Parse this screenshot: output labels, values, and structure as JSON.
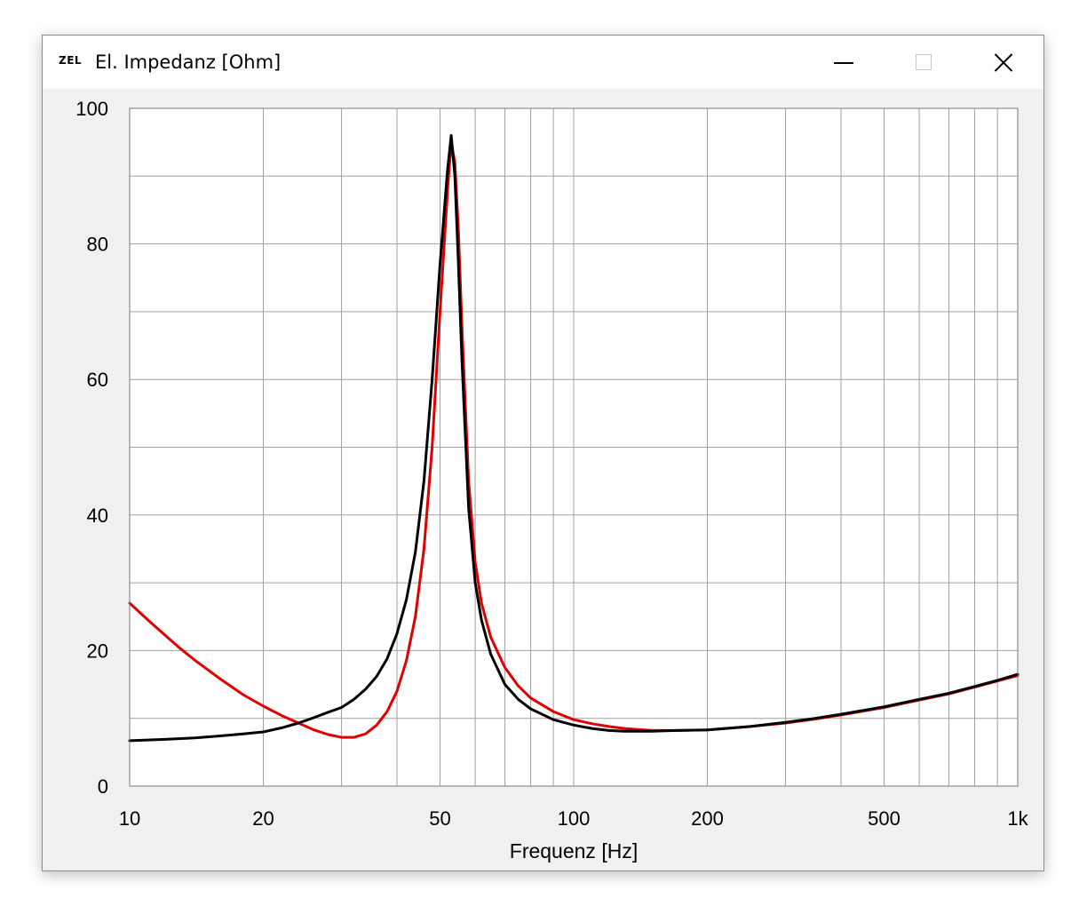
{
  "window": {
    "icon_text": "ZEL",
    "title": "El. Impedanz [Ohm]"
  },
  "chart_data": {
    "type": "line",
    "xlabel": "Frequenz [Hz]",
    "ylabel": "",
    "xscale": "log",
    "xlim": [
      10,
      1000
    ],
    "ylim": [
      0,
      100
    ],
    "grid": true,
    "x_ticks": [
      {
        "value": 10,
        "label": "10"
      },
      {
        "value": 20,
        "label": "20"
      },
      {
        "value": 50,
        "label": "50"
      },
      {
        "value": 100,
        "label": "100"
      },
      {
        "value": 200,
        "label": "200"
      },
      {
        "value": 500,
        "label": "500"
      },
      {
        "value": 1000,
        "label": "1k"
      }
    ],
    "y_ticks": [
      {
        "value": 0,
        "label": "0"
      },
      {
        "value": 20,
        "label": "20"
      },
      {
        "value": 40,
        "label": "40"
      },
      {
        "value": 60,
        "label": "60"
      },
      {
        "value": 80,
        "label": "80"
      },
      {
        "value": 100,
        "label": "100"
      }
    ],
    "series": [
      {
        "color": "#e00000",
        "x": [
          10,
          11,
          12,
          13,
          14,
          16,
          18,
          20,
          22,
          24,
          26,
          28,
          30,
          32,
          34,
          36,
          38,
          40,
          42,
          44,
          46,
          48,
          50,
          52,
          53,
          54,
          55,
          56,
          58,
          60,
          62,
          65,
          70,
          75,
          80,
          90,
          100,
          110,
          120,
          130,
          150,
          170,
          200,
          250,
          300,
          350,
          400,
          500,
          600,
          700,
          800,
          900,
          1000
        ],
        "y": [
          27.0,
          24.5,
          22.3,
          20.3,
          18.6,
          15.8,
          13.5,
          11.8,
          10.4,
          9.3,
          8.3,
          7.6,
          7.2,
          7.2,
          7.7,
          9.0,
          11.0,
          14.0,
          18.5,
          25.0,
          35.0,
          50.0,
          70.0,
          88.0,
          95.0,
          92.0,
          82.0,
          68.0,
          45.0,
          33.0,
          27.0,
          22.0,
          17.5,
          14.8,
          13.0,
          11.0,
          9.8,
          9.2,
          8.8,
          8.5,
          8.2,
          8.2,
          8.3,
          8.8,
          9.3,
          9.9,
          10.5,
          11.6,
          12.7,
          13.6,
          14.6,
          15.5,
          16.3
        ]
      },
      {
        "color": "#000000",
        "x": [
          10,
          12,
          14,
          16,
          18,
          20,
          22,
          24,
          26,
          28,
          30,
          32,
          34,
          36,
          38,
          40,
          42,
          44,
          46,
          48,
          50,
          52,
          53,
          54,
          55,
          56,
          58,
          60,
          62,
          65,
          70,
          75,
          80,
          90,
          100,
          110,
          120,
          130,
          150,
          170,
          200,
          250,
          300,
          350,
          400,
          500,
          600,
          700,
          800,
          900,
          1000
        ],
        "y": [
          6.7,
          6.9,
          7.1,
          7.4,
          7.7,
          8.0,
          8.6,
          9.3,
          10.1,
          10.9,
          11.6,
          12.8,
          14.3,
          16.2,
          18.8,
          22.5,
          27.5,
          34.5,
          45.0,
          60.0,
          77.0,
          91.0,
          96.0,
          90.0,
          77.0,
          63.0,
          41.0,
          30.0,
          24.5,
          19.5,
          15.0,
          12.8,
          11.4,
          9.8,
          9.0,
          8.5,
          8.2,
          8.1,
          8.1,
          8.2,
          8.3,
          8.8,
          9.4,
          10.0,
          10.6,
          11.7,
          12.8,
          13.7,
          14.7,
          15.6,
          16.5
        ]
      }
    ]
  }
}
